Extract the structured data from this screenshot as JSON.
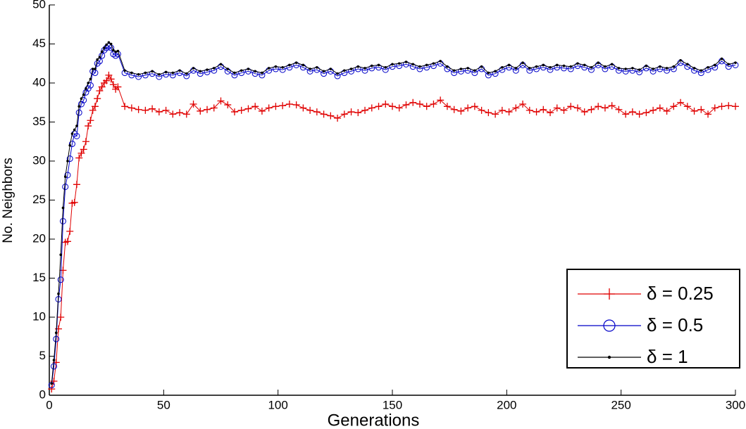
{
  "chart_data": {
    "type": "line",
    "xlabel": "Generations",
    "ylabel": "No. Neighbors",
    "x": [
      1,
      2,
      3,
      4,
      5,
      6,
      7,
      8,
      9,
      10,
      11,
      12,
      13,
      14,
      15,
      16,
      17,
      18,
      19,
      20,
      21,
      22,
      23,
      24,
      25,
      26,
      27,
      28,
      29,
      30,
      33,
      36,
      39,
      42,
      45,
      48,
      51,
      54,
      57,
      60,
      63,
      66,
      69,
      72,
      75,
      78,
      81,
      84,
      87,
      90,
      93,
      96,
      99,
      102,
      105,
      108,
      111,
      114,
      117,
      120,
      123,
      126,
      129,
      132,
      135,
      138,
      141,
      144,
      147,
      150,
      153,
      156,
      159,
      162,
      165,
      168,
      171,
      174,
      177,
      180,
      183,
      186,
      189,
      192,
      195,
      198,
      201,
      204,
      207,
      210,
      213,
      216,
      219,
      222,
      225,
      228,
      231,
      234,
      237,
      240,
      243,
      246,
      249,
      252,
      255,
      258,
      261,
      264,
      267,
      270,
      273,
      276,
      279,
      282,
      285,
      288,
      291,
      294,
      297,
      300
    ],
    "series": [
      {
        "name": "δ = 0.25",
        "color": "#e00000",
        "marker": "plus",
        "values": [
          0.8,
          1.8,
          4.2,
          8.5,
          10,
          16,
          19.6,
          19.7,
          21,
          24.6,
          24.7,
          27,
          30.4,
          31,
          31.5,
          32.5,
          34.5,
          35.2,
          36.5,
          37,
          38,
          39,
          39.5,
          40,
          40.3,
          41,
          40.5,
          39.8,
          39.2,
          39.5,
          37,
          36.8,
          36.6,
          36.5,
          36.7,
          36.3,
          36.5,
          36.0,
          36.2,
          36.0,
          37.3,
          36.4,
          36.6,
          36.8,
          37.7,
          37.2,
          36.3,
          36.5,
          36.7,
          37,
          36.4,
          36.8,
          37.0,
          37.1,
          37.3,
          37.2,
          36.8,
          36.5,
          36.3,
          36.0,
          35.8,
          35.5,
          36,
          36.3,
          36.2,
          36.5,
          36.8,
          37.0,
          37.3,
          37.0,
          36.8,
          37.2,
          37.5,
          37.3,
          37.0,
          37.3,
          37.8,
          37.0,
          36.6,
          36.4,
          36.8,
          37,
          36.5,
          36.2,
          36.0,
          36.5,
          36.3,
          36.8,
          37.3,
          36.5,
          36.3,
          36.6,
          36.2,
          36.8,
          36.5,
          37.0,
          36.8,
          36.3,
          36.6,
          37.0,
          36.8,
          37.1,
          36.6,
          36.0,
          36.3,
          36.0,
          36.2,
          36.5,
          36.8,
          36.4,
          37.0,
          37.5,
          37.0,
          36.4,
          36.6,
          36.0,
          36.8,
          37.0,
          37.1,
          37.0
        ]
      },
      {
        "name": "δ = 0.5",
        "color": "#0000c8",
        "marker": "circle",
        "values": [
          1.3,
          3.7,
          7.2,
          12.3,
          14.8,
          22.3,
          26.7,
          28.2,
          30.3,
          32.2,
          33.5,
          33.2,
          36.2,
          37.3,
          37.8,
          38.8,
          39.3,
          39.7,
          41.5,
          41.3,
          42.5,
          42.8,
          43.5,
          44.2,
          44.5,
          44.7,
          44.5,
          43.7,
          43.5,
          43.7,
          41.3,
          41,
          40.8,
          41,
          41.2,
          40.8,
          41.1,
          41,
          41.3,
          40.9,
          41.6,
          41.2,
          41.4,
          41.6,
          42.1,
          41.5,
          41.0,
          41.3,
          41.5,
          41.2,
          41.0,
          41.6,
          41.8,
          41.7,
          42.0,
          42.3,
          42.0,
          41.5,
          41.7,
          41.2,
          41.5,
          40.9,
          41.3,
          41.5,
          41.8,
          41.6,
          41.9,
          42.0,
          41.7,
          42.1,
          42.2,
          42.4,
          42.1,
          41.8,
          42.0,
          42.2,
          42.5,
          41.8,
          41.3,
          41.5,
          41.6,
          41.3,
          41.8,
          41.0,
          41.2,
          41.7,
          42.0,
          41.6,
          42.3,
          41.6,
          41.8,
          42.0,
          41.7,
          42.0,
          41.9,
          41.8,
          42.2,
          42.0,
          41.7,
          42.3,
          41.8,
          42.1,
          41.6,
          41.5,
          41.6,
          41.4,
          41.9,
          41.5,
          41.8,
          41.6,
          41.8,
          42.6,
          42.1,
          41.6,
          41.3,
          41.7,
          42.0,
          42.8,
          42.1,
          42.3
        ]
      },
      {
        "name": "δ = 1",
        "color": "#000000",
        "marker": "dot",
        "values": [
          1.5,
          4.5,
          8,
          13,
          18,
          24,
          28,
          30,
          32,
          33.5,
          34,
          34.5,
          37,
          38,
          38.5,
          39.3,
          40,
          40.5,
          41.8,
          41.8,
          43,
          43.3,
          44,
          44.5,
          44.9,
          45.2,
          45,
          44.2,
          44,
          44.1,
          41.6,
          41.3,
          41.1,
          41.3,
          41.5,
          41.1,
          41.4,
          41.3,
          41.6,
          41.2,
          41.9,
          41.5,
          41.7,
          41.9,
          42.4,
          41.8,
          41.3,
          41.6,
          41.8,
          41.5,
          41.3,
          41.9,
          42.1,
          42.0,
          42.3,
          42.6,
          42.3,
          41.8,
          42.0,
          41.5,
          41.8,
          41.2,
          41.6,
          41.8,
          42.1,
          41.9,
          42.2,
          42.3,
          42.0,
          42.4,
          42.5,
          42.7,
          42.4,
          42.1,
          42.3,
          42.5,
          42.8,
          42.1,
          41.6,
          41.8,
          41.9,
          41.6,
          42.1,
          41.3,
          41.5,
          42.0,
          42.3,
          41.9,
          42.6,
          41.9,
          42.1,
          42.3,
          42.0,
          42.3,
          42.2,
          42.1,
          42.5,
          42.3,
          42.0,
          42.6,
          42.1,
          42.4,
          41.9,
          41.8,
          41.9,
          41.7,
          42.2,
          41.8,
          42.1,
          41.9,
          42.1,
          42.9,
          42.4,
          41.9,
          41.6,
          42.0,
          42.3,
          43.1,
          42.4,
          42.6
        ]
      }
    ],
    "xlim": [
      0,
      300
    ],
    "xticks": [
      0,
      50,
      100,
      150,
      200,
      250,
      300
    ],
    "ylim": [
      0,
      50
    ],
    "yticks": [
      0,
      5,
      10,
      15,
      20,
      25,
      30,
      35,
      40,
      45,
      50
    ],
    "legend": "lower right"
  }
}
